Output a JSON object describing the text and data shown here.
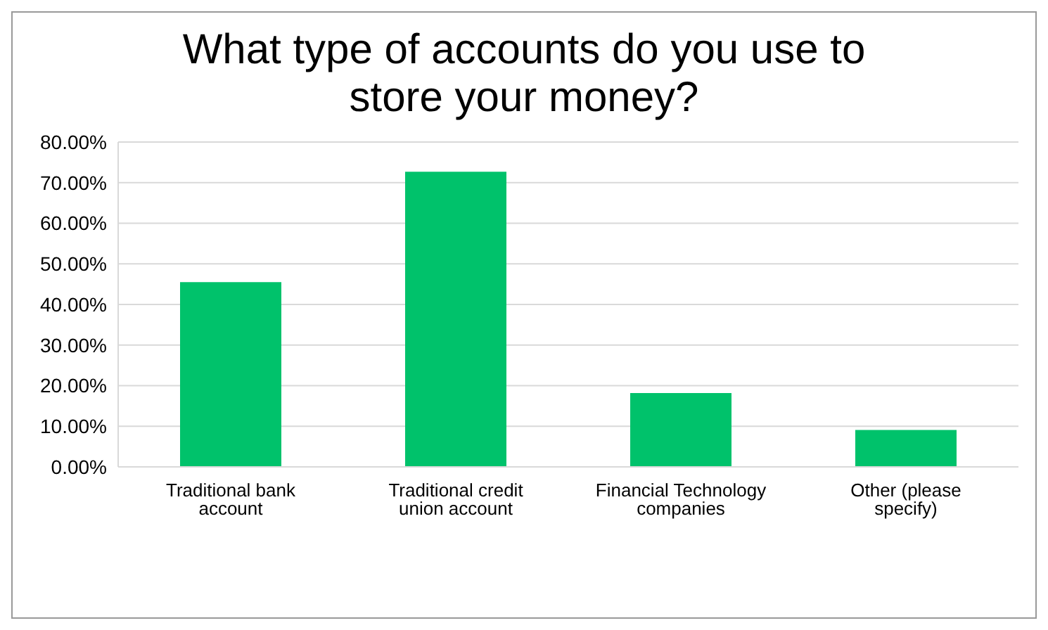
{
  "chart_data": {
    "type": "bar",
    "title": "What type of accounts do you use to store your money?",
    "categories": [
      "Traditional bank account",
      "Traditional credit union account",
      "Financial Technology companies",
      "Other (please specify)"
    ],
    "values": [
      45.5,
      72.7,
      18.2,
      9.1
    ],
    "color": "#00c26b",
    "ylim": [
      0,
      80
    ],
    "yticks": [
      {
        "value": 0,
        "label": "0.00%"
      },
      {
        "value": 10,
        "label": "10.00%"
      },
      {
        "value": 20,
        "label": "20.00%"
      },
      {
        "value": 30,
        "label": "30.00%"
      },
      {
        "value": 40,
        "label": "40.00%"
      },
      {
        "value": 50,
        "label": "50.00%"
      },
      {
        "value": 60,
        "label": "60.00%"
      },
      {
        "value": 70,
        "label": "70.00%"
      },
      {
        "value": 80,
        "label": "80.00%"
      }
    ],
    "grid": "y"
  }
}
